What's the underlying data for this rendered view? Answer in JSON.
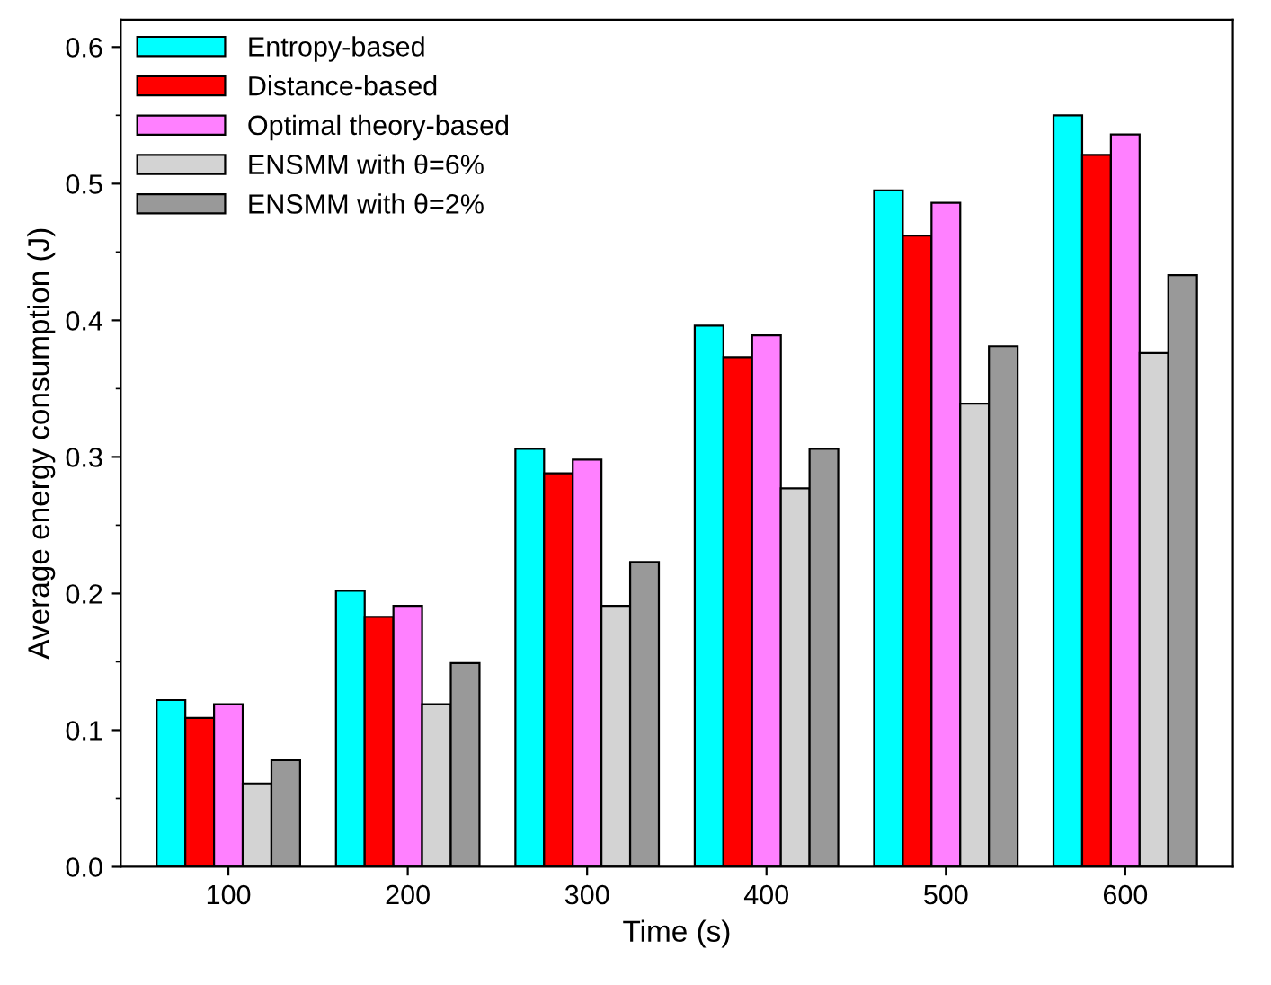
{
  "chart_data": {
    "type": "bar",
    "xlabel": "Time (s)",
    "ylabel": "Average energy consumption (J)",
    "categories": [
      "100",
      "200",
      "300",
      "400",
      "500",
      "600"
    ],
    "series": [
      {
        "name": "Entropy-based",
        "color": "#00ffff",
        "values": [
          0.122,
          0.202,
          0.306,
          0.396,
          0.495,
          0.55
        ]
      },
      {
        "name": "Distance-based",
        "color": "#ff0000",
        "values": [
          0.109,
          0.183,
          0.288,
          0.373,
          0.462,
          0.521
        ]
      },
      {
        "name": "Optimal theory-based",
        "color": "#ff80ff",
        "values": [
          0.119,
          0.191,
          0.298,
          0.389,
          0.486,
          0.536
        ]
      },
      {
        "name": "ENSMM with θ=6%",
        "color": "#d3d3d3",
        "values": [
          0.061,
          0.119,
          0.191,
          0.277,
          0.339,
          0.376
        ]
      },
      {
        "name": "ENSMM with θ=2%",
        "color": "#999999",
        "values": [
          0.078,
          0.149,
          0.223,
          0.306,
          0.381,
          0.433
        ]
      }
    ],
    "ylim": [
      0,
      0.62
    ],
    "yticks": [
      {
        "value": 0,
        "label": "0.0"
      },
      0.1,
      0.2,
      0.3,
      0.4,
      0.5,
      0.6
    ],
    "grid": false,
    "legend": "top left"
  }
}
